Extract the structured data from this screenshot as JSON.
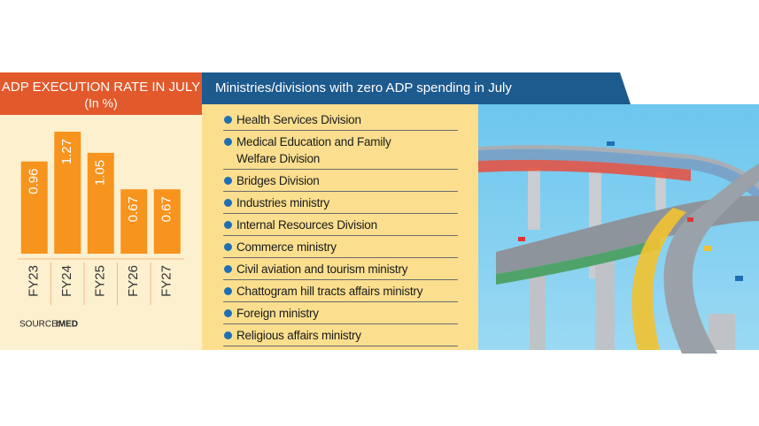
{
  "chart_data": {
    "type": "bar",
    "title": "ADP EXECUTION RATE IN JULY",
    "subtitle": "(In %)",
    "categories": [
      "FY23",
      "FY24",
      "FY25",
      "FY26",
      "FY27"
    ],
    "values": [
      0.96,
      1.27,
      1.05,
      0.67,
      0.67
    ],
    "color": "#f7941d",
    "source_label": "SOURCE:",
    "source": "IMED"
  },
  "list": {
    "title": "Ministries/divisions with zero ADP spending in July",
    "items": [
      "Health Services Division",
      "Medical Education and Family Welfare Division",
      "Bridges Division",
      "Industries ministry",
      "Internal Resources Division",
      "Commerce ministry",
      "Civil aviation and tourism ministry",
      "Chattogram hill tracts affairs ministry",
      "Foreign ministry",
      "Religious affairs ministry"
    ]
  }
}
